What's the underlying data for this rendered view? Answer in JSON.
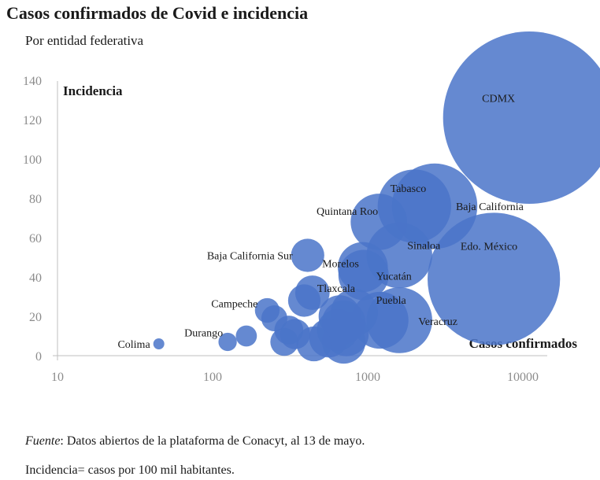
{
  "title": "Casos confirmados de Covid e incidencia",
  "subtitle": "Por entidad federativa",
  "footer": {
    "source_label": "Fuente",
    "source_text": ": Datos abiertos de la plataforma de Conacyt, al 13 de mayo.",
    "note": "Incidencia= casos por 100 mil habitantes."
  },
  "chart_data": {
    "type": "bubble",
    "title": "Casos confirmados de Covid e incidencia",
    "xlabel": "Casos confirmados",
    "ylabel": "Incidencia",
    "xscale": "log",
    "xlim": [
      10,
      20000
    ],
    "ylim": [
      0,
      140
    ],
    "xticks": [
      "10",
      "100",
      "1000",
      "10000"
    ],
    "yticks": [
      "0",
      "20",
      "40",
      "60",
      "80",
      "100",
      "120",
      "140"
    ],
    "color": "#4a74c9",
    "points": [
      {
        "label": "CDMX",
        "x": 11000,
        "y": 121,
        "size": 11000
      },
      {
        "label": "Edo. México",
        "x": 6500,
        "y": 39,
        "size": 6500
      },
      {
        "label": "Baja California",
        "x": 2700,
        "y": 76,
        "size": 2700
      },
      {
        "label": "Tabasco",
        "x": 2000,
        "y": 76,
        "size": 2000
      },
      {
        "label": "Quintana Roo",
        "x": 1180,
        "y": 68,
        "size": 1180
      },
      {
        "label": "Sinaloa",
        "x": 1600,
        "y": 51,
        "size": 1600
      },
      {
        "label": "Baja California Sur",
        "x": 410,
        "y": 51,
        "size": 410
      },
      {
        "label": "Morelos",
        "x": 930,
        "y": 45,
        "size": 930
      },
      {
        "label": "Yucatán",
        "x": 940,
        "y": 41,
        "size": 940
      },
      {
        "label": "Tlaxcala",
        "x": 440,
        "y": 32,
        "size": 440
      },
      {
        "label": "Puebla",
        "x": 1200,
        "y": 18,
        "size": 1200
      },
      {
        "label": "Veracruz",
        "x": 1600,
        "y": 18,
        "size": 1600
      },
      {
        "label": "Campeche",
        "x": 225,
        "y": 23,
        "size": 225
      },
      {
        "label": "Durango",
        "x": 125,
        "y": 7,
        "size": 125
      },
      {
        "label": "Colima",
        "x": 45,
        "y": 6,
        "size": 45
      },
      {
        "label": "",
        "x": 165,
        "y": 10,
        "size": 165
      },
      {
        "label": "",
        "x": 250,
        "y": 19,
        "size": 250
      },
      {
        "label": "",
        "x": 390,
        "y": 28,
        "size": 390
      },
      {
        "label": "",
        "x": 310,
        "y": 13,
        "size": 310
      },
      {
        "label": "",
        "x": 340,
        "y": 11,
        "size": 340
      },
      {
        "label": "",
        "x": 290,
        "y": 7,
        "size": 290
      },
      {
        "label": "",
        "x": 450,
        "y": 6,
        "size": 450
      },
      {
        "label": "",
        "x": 560,
        "y": 9,
        "size": 560
      },
      {
        "label": "",
        "x": 640,
        "y": 13,
        "size": 640
      },
      {
        "label": "",
        "x": 660,
        "y": 20,
        "size": 660
      },
      {
        "label": "",
        "x": 700,
        "y": 17,
        "size": 700
      },
      {
        "label": "",
        "x": 730,
        "y": 11,
        "size": 730
      },
      {
        "label": "",
        "x": 820,
        "y": 22,
        "size": 820
      },
      {
        "label": "",
        "x": 700,
        "y": 7,
        "size": 700
      }
    ]
  }
}
